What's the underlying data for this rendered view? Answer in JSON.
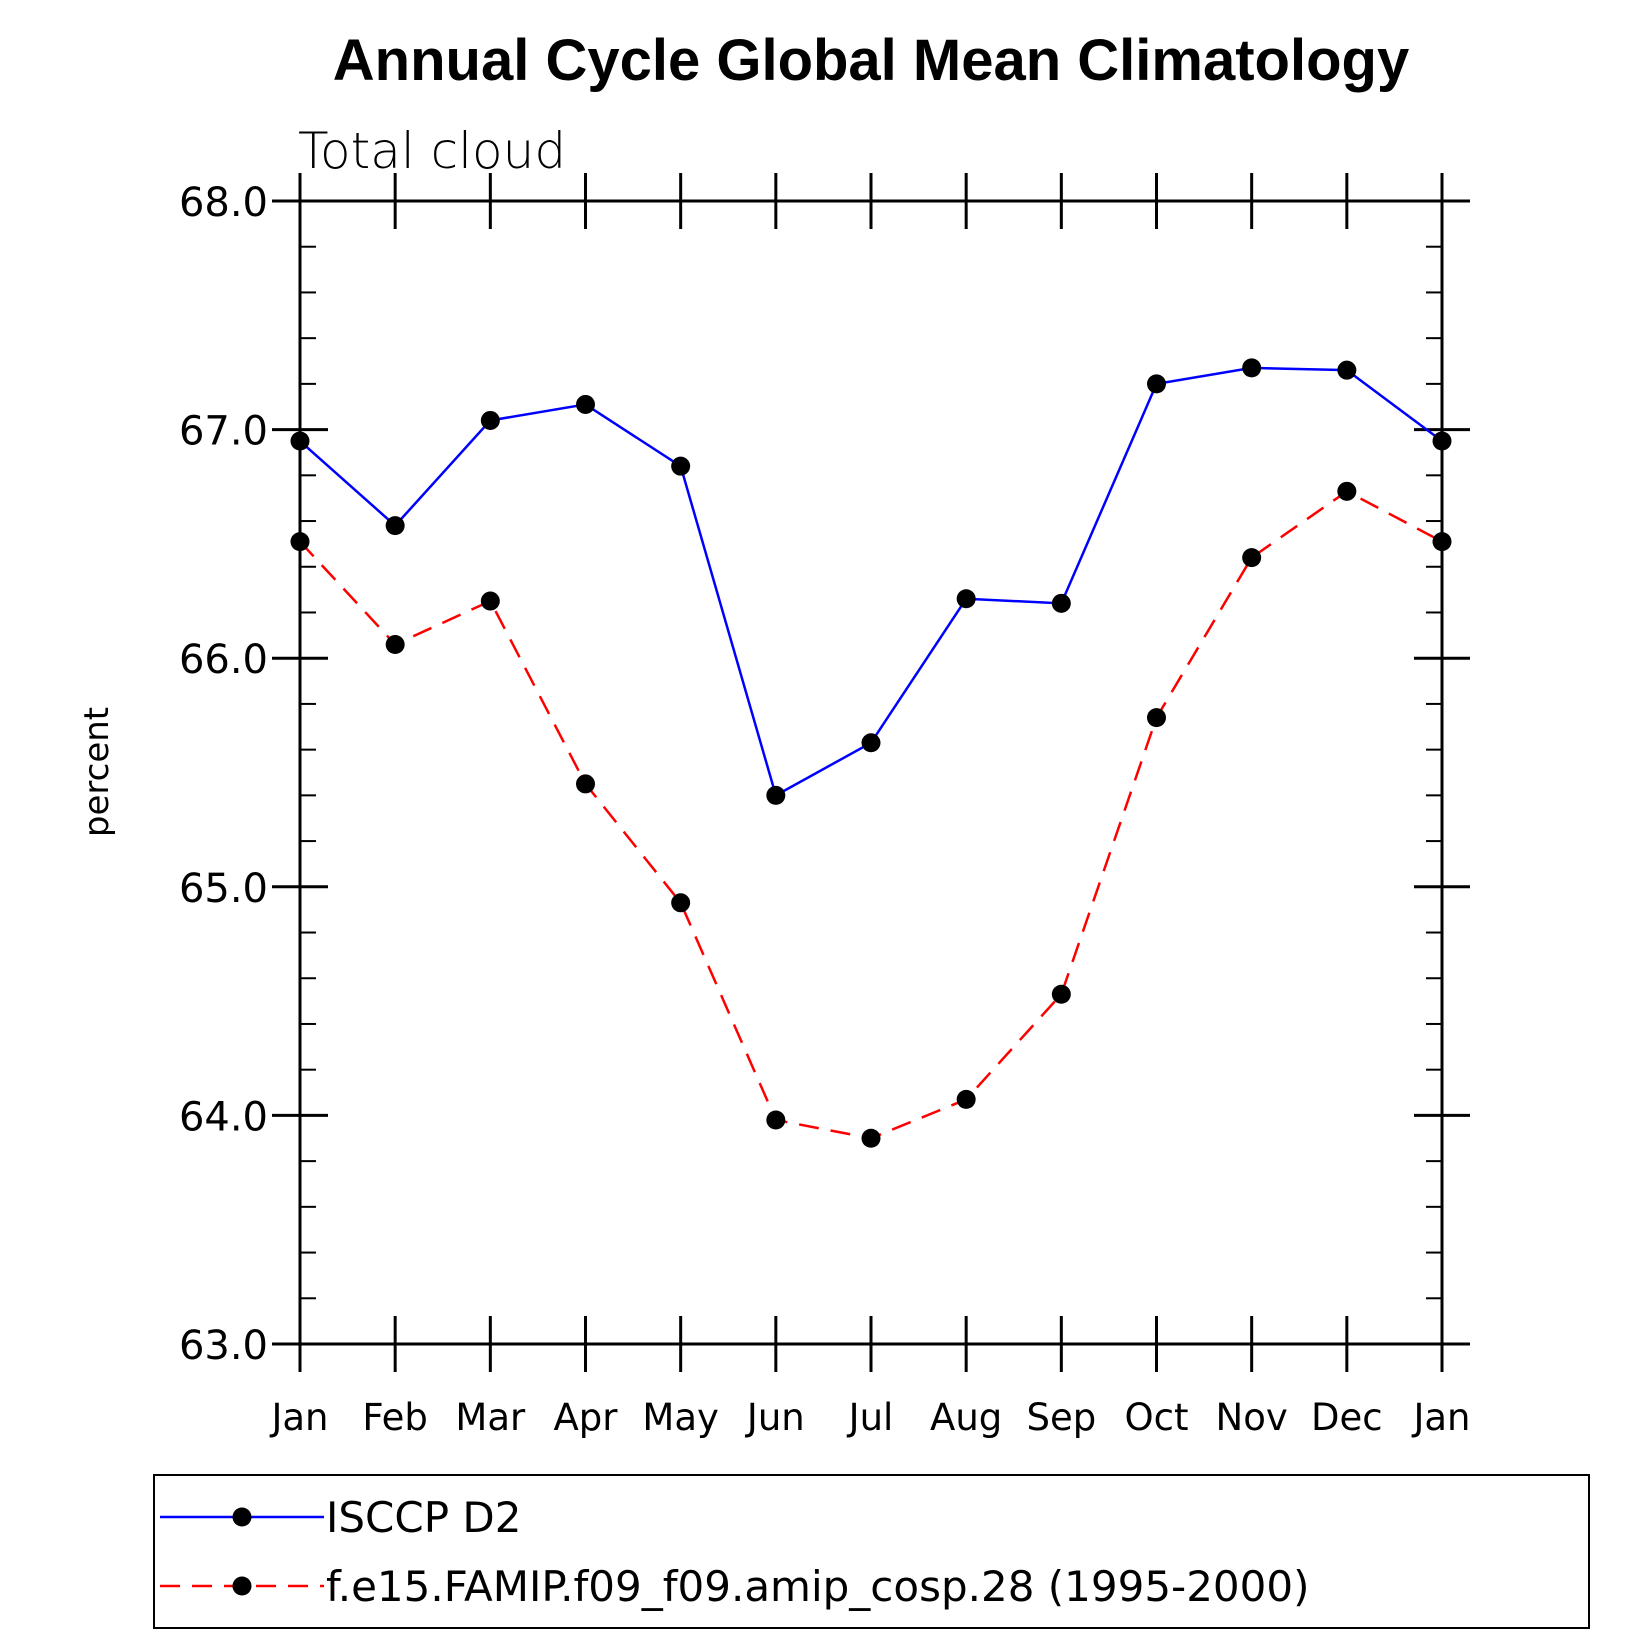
{
  "chart_data": {
    "type": "line",
    "title": "Annual Cycle Global Mean Climatology",
    "subtitle": "Total cloud",
    "xlabel": "",
    "ylabel": "percent",
    "categories": [
      "Jan",
      "Feb",
      "Mar",
      "Apr",
      "May",
      "Jun",
      "Jul",
      "Aug",
      "Sep",
      "Oct",
      "Nov",
      "Dec",
      "Jan"
    ],
    "ylim": [
      63.0,
      68.0
    ],
    "yticks": [
      "63.0",
      "64.0",
      "65.0",
      "66.0",
      "67.0",
      "68.0"
    ],
    "series": [
      {
        "name": "ISCCP D2",
        "color": "#0000ff",
        "style": "solid",
        "marker": "filled-circle",
        "values": [
          66.95,
          66.58,
          67.04,
          67.11,
          66.84,
          65.4,
          65.63,
          66.26,
          66.24,
          67.2,
          67.27,
          67.26,
          66.95
        ]
      },
      {
        "name": "f.e15.FAMIP.f09_f09.amip_cosp.28 (1995-2000)",
        "color": "#ff0000",
        "style": "dashed",
        "marker": "filled-circle",
        "values": [
          66.51,
          66.06,
          66.25,
          65.45,
          64.93,
          63.98,
          63.9,
          64.07,
          64.53,
          65.74,
          66.44,
          66.73,
          66.51
        ]
      }
    ],
    "grid": false,
    "legend_placement": "bottom"
  }
}
